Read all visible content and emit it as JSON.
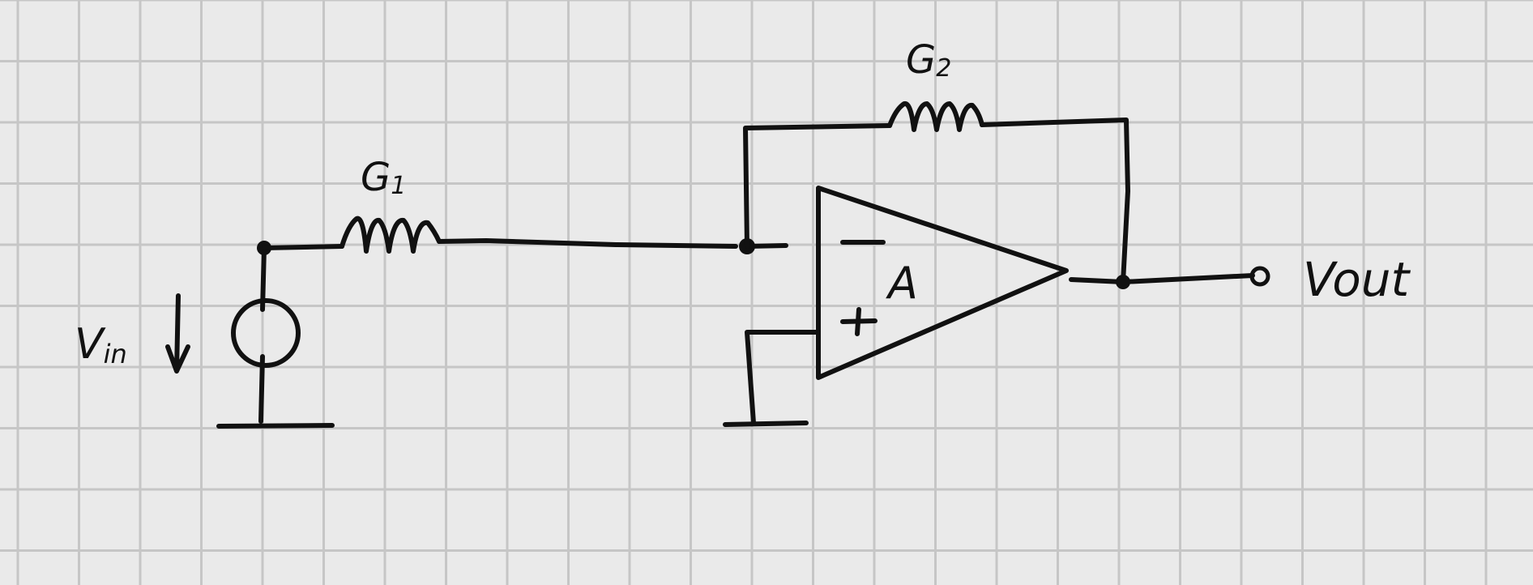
{
  "diagram": {
    "title": "Inverting operational amplifier circuit (hand-drawn on grid paper)",
    "labels": {
      "input_resistor": "G",
      "input_resistor_sub": "1",
      "feedback_resistor": "G",
      "feedback_resistor_sub": "2",
      "input_voltage": "V",
      "input_voltage_sub": "in",
      "output_voltage": "Vout",
      "opamp_gain": "A",
      "inverting_input": "−",
      "noninverting_input": "+"
    },
    "colors": {
      "ink": "#111111",
      "paper": "#eaeaea",
      "grid": "#c6c6c6"
    }
  }
}
